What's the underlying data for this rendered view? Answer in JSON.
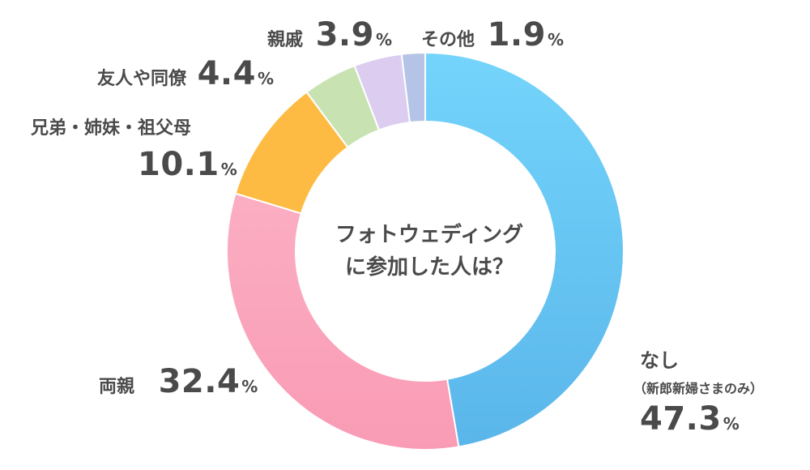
{
  "chart_data": {
    "type": "pie",
    "donut": true,
    "title_line1": "フォトウェディング",
    "title_line2": "に参加した人は？",
    "unit": "%",
    "slices": [
      {
        "name": "なし",
        "note": "（新郎新婦さまのみ）",
        "value": 47.3,
        "display": "47.3",
        "color": "#63c3f2"
      },
      {
        "name": "両親",
        "value": 32.4,
        "display": "32.4",
        "color": "#f9a3bb"
      },
      {
        "name_line1": "兄弟・姉妹・祖父母",
        "value": 10.1,
        "display": "10.1",
        "color": "#fdbb43"
      },
      {
        "name": "友人や同僚",
        "value": 4.4,
        "display": "4.4",
        "color": "#c8e3b1"
      },
      {
        "name": "親戚",
        "value": 3.9,
        "display": "3.9",
        "color": "#dccdf0"
      },
      {
        "name": "その他",
        "value": 1.9,
        "display": "1.9",
        "color": "#b4c3e6"
      }
    ]
  }
}
